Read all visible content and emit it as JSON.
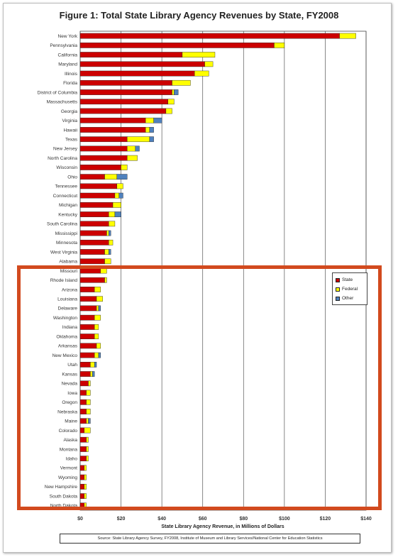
{
  "chart_data": {
    "type": "bar",
    "orientation": "horizontal",
    "stacked": true,
    "title": "Figure 1: Total State Library Agency Revenues by State, FY2008",
    "xlabel": "State Library Agency Revenue, in Millions of Dollars",
    "xlim": [
      0,
      140
    ],
    "xticks": [
      "$0",
      "$20",
      "$40",
      "$60",
      "$80",
      "$100",
      "$120",
      "$140"
    ],
    "grid": true,
    "legend_position": "right",
    "colors": {
      "State": "#cc0000",
      "Federal": "#ffff00",
      "Other": "#4f81bd"
    },
    "categories": [
      "New York",
      "Pennsylvania",
      "California",
      "Maryland",
      "Illinois",
      "Florida",
      "District of Columbia",
      "Massachusetts",
      "Georgia",
      "Virginia",
      "Hawaii",
      "Texas",
      "New Jersey",
      "North Carolina",
      "Wisconsin",
      "Ohio",
      "Tennessee",
      "Connecticut",
      "Michigan",
      "Kentucky",
      "South Carolina",
      "Mississippi",
      "Minnesota",
      "West Virginia",
      "Alabama",
      "Missouri",
      "Rhode Island",
      "Arizona",
      "Louisiana",
      "Delaware",
      "Washington",
      "Indiana",
      "Oklahoma",
      "Arkansas",
      "New Mexico",
      "Utah",
      "Kansas",
      "Nevada",
      "Iowa",
      "Oregon",
      "Nebraska",
      "Maine",
      "Colorado",
      "Alaska",
      "Montana",
      "Idaho",
      "Vermont",
      "Wyoming",
      "New Hampshire",
      "South Dakota",
      "North Dakota"
    ],
    "series": [
      {
        "name": "State",
        "values": [
          127,
          95,
          50,
          61,
          56,
          45,
          45,
          43,
          42,
          32,
          32,
          23,
          23,
          23,
          20,
          12,
          18,
          17,
          16,
          14,
          14,
          13,
          14,
          12,
          12,
          10,
          12,
          7,
          8,
          8,
          7,
          7,
          7,
          8,
          7,
          5,
          5,
          4,
          3,
          3,
          3,
          3,
          2,
          3,
          3,
          3,
          2,
          2,
          2,
          2,
          2
        ]
      },
      {
        "name": "Federal",
        "values": [
          8,
          5,
          16,
          4,
          7,
          9,
          1,
          3,
          3,
          4,
          2,
          11,
          4,
          5,
          3,
          6,
          3,
          2,
          4,
          3,
          3,
          1,
          2,
          2,
          3,
          3,
          1,
          3,
          3,
          1,
          3,
          2,
          2,
          2,
          2,
          2,
          1,
          1,
          2,
          2,
          2,
          1,
          3,
          1,
          1,
          1,
          1,
          1,
          1,
          1,
          1
        ]
      },
      {
        "name": "Other",
        "values": [
          0,
          0,
          0,
          0,
          0,
          0,
          2,
          0,
          0,
          4,
          2,
          2,
          2,
          0,
          0,
          5,
          0,
          2,
          0,
          3,
          0,
          1,
          0,
          1,
          0,
          0,
          0,
          0,
          0,
          1,
          0,
          0,
          0,
          0,
          1,
          1,
          1,
          0,
          0,
          0,
          0,
          1,
          0,
          0,
          0,
          0,
          0,
          0,
          0,
          0,
          0
        ]
      }
    ],
    "source": "Source: State Library Agency Survey, FY2008, Institute of Museum and Library Services/National Center for Education Statistics"
  }
}
